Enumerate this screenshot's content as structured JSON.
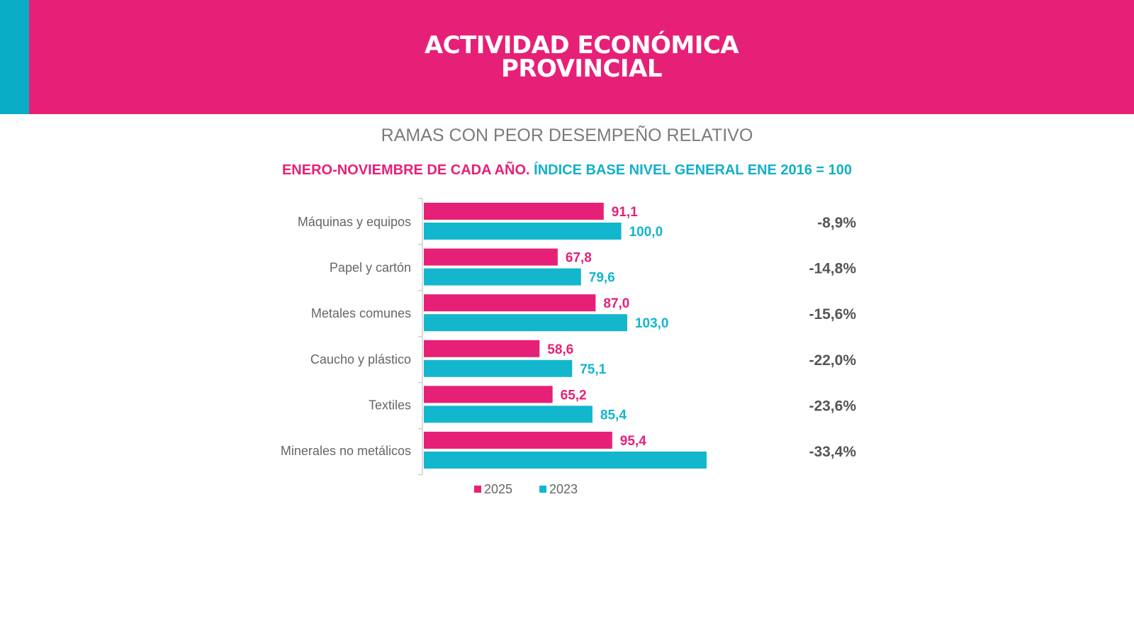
{
  "header": {
    "title_line1": "ACTIVIDAD ECONÓMICA",
    "title_line2": "PROVINCIAL"
  },
  "colors": {
    "pink": "#E72077",
    "teal": "#12B6CD",
    "header_teal": "#0AADC6"
  },
  "chart_data": {
    "type": "bar",
    "orientation": "horizontal",
    "title": "RAMAS CON PEOR DESEMPEÑO RELATIVO",
    "subtitle_part1": "ENERO-NOVIEMBRE DE CADA AÑO.",
    "subtitle_part2": "ÍNDICE BASE NIVEL GENERAL ENE 2016 = 100",
    "categories": [
      "Máquinas y equipos",
      "Papel y cartón",
      "Metales comunes",
      "Caucho y plástico",
      "Textiles",
      "Minerales no metálicos"
    ],
    "series": [
      {
        "name": "2025",
        "color": "#E72077",
        "values": [
          91.1,
          67.8,
          87.0,
          58.6,
          65.2,
          95.4
        ],
        "labels": [
          "91,1",
          "67,8",
          "87,0",
          "58,6",
          "65,2",
          "95,4"
        ]
      },
      {
        "name": "2023",
        "color": "#12B6CD",
        "values": [
          100.0,
          79.6,
          103.0,
          75.1,
          85.4,
          143.2
        ],
        "labels": [
          "100,0",
          "79,6",
          "103,0",
          "75,1",
          "85,4",
          ""
        ]
      }
    ],
    "variation_labels": [
      "-8,9%",
      "-14,8%",
      "-15,6%",
      "-22,0%",
      "-23,6%",
      "-33,4%"
    ],
    "legend": [
      "2025",
      "2023"
    ],
    "legend_position": "bottom",
    "xlim": [
      0,
      150
    ],
    "grid": false
  }
}
